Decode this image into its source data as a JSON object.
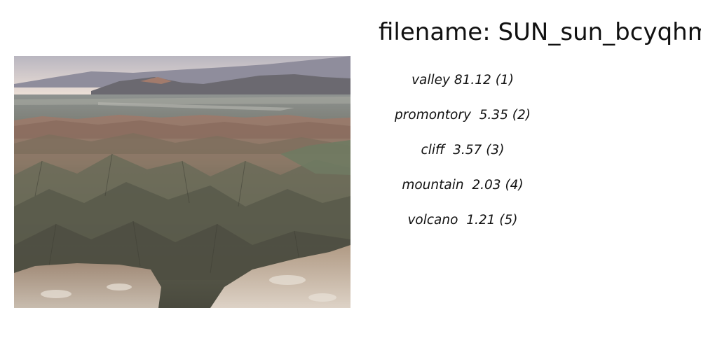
{
  "filename": "filename: SUN_sun_bcyqhms",
  "predictions": [
    {
      "label": "valley",
      "score": "81.12",
      "rank": "(1)"
    },
    {
      "label": "promontory",
      "score": "5.35",
      "rank": "(2)"
    },
    {
      "label": "cliff",
      "score": "3.57",
      "rank": "(3)"
    },
    {
      "label": "mountain",
      "score": "2.03",
      "rank": "(4)"
    },
    {
      "label": "volcano",
      "score": "1.21",
      "rank": "(5)"
    }
  ]
}
